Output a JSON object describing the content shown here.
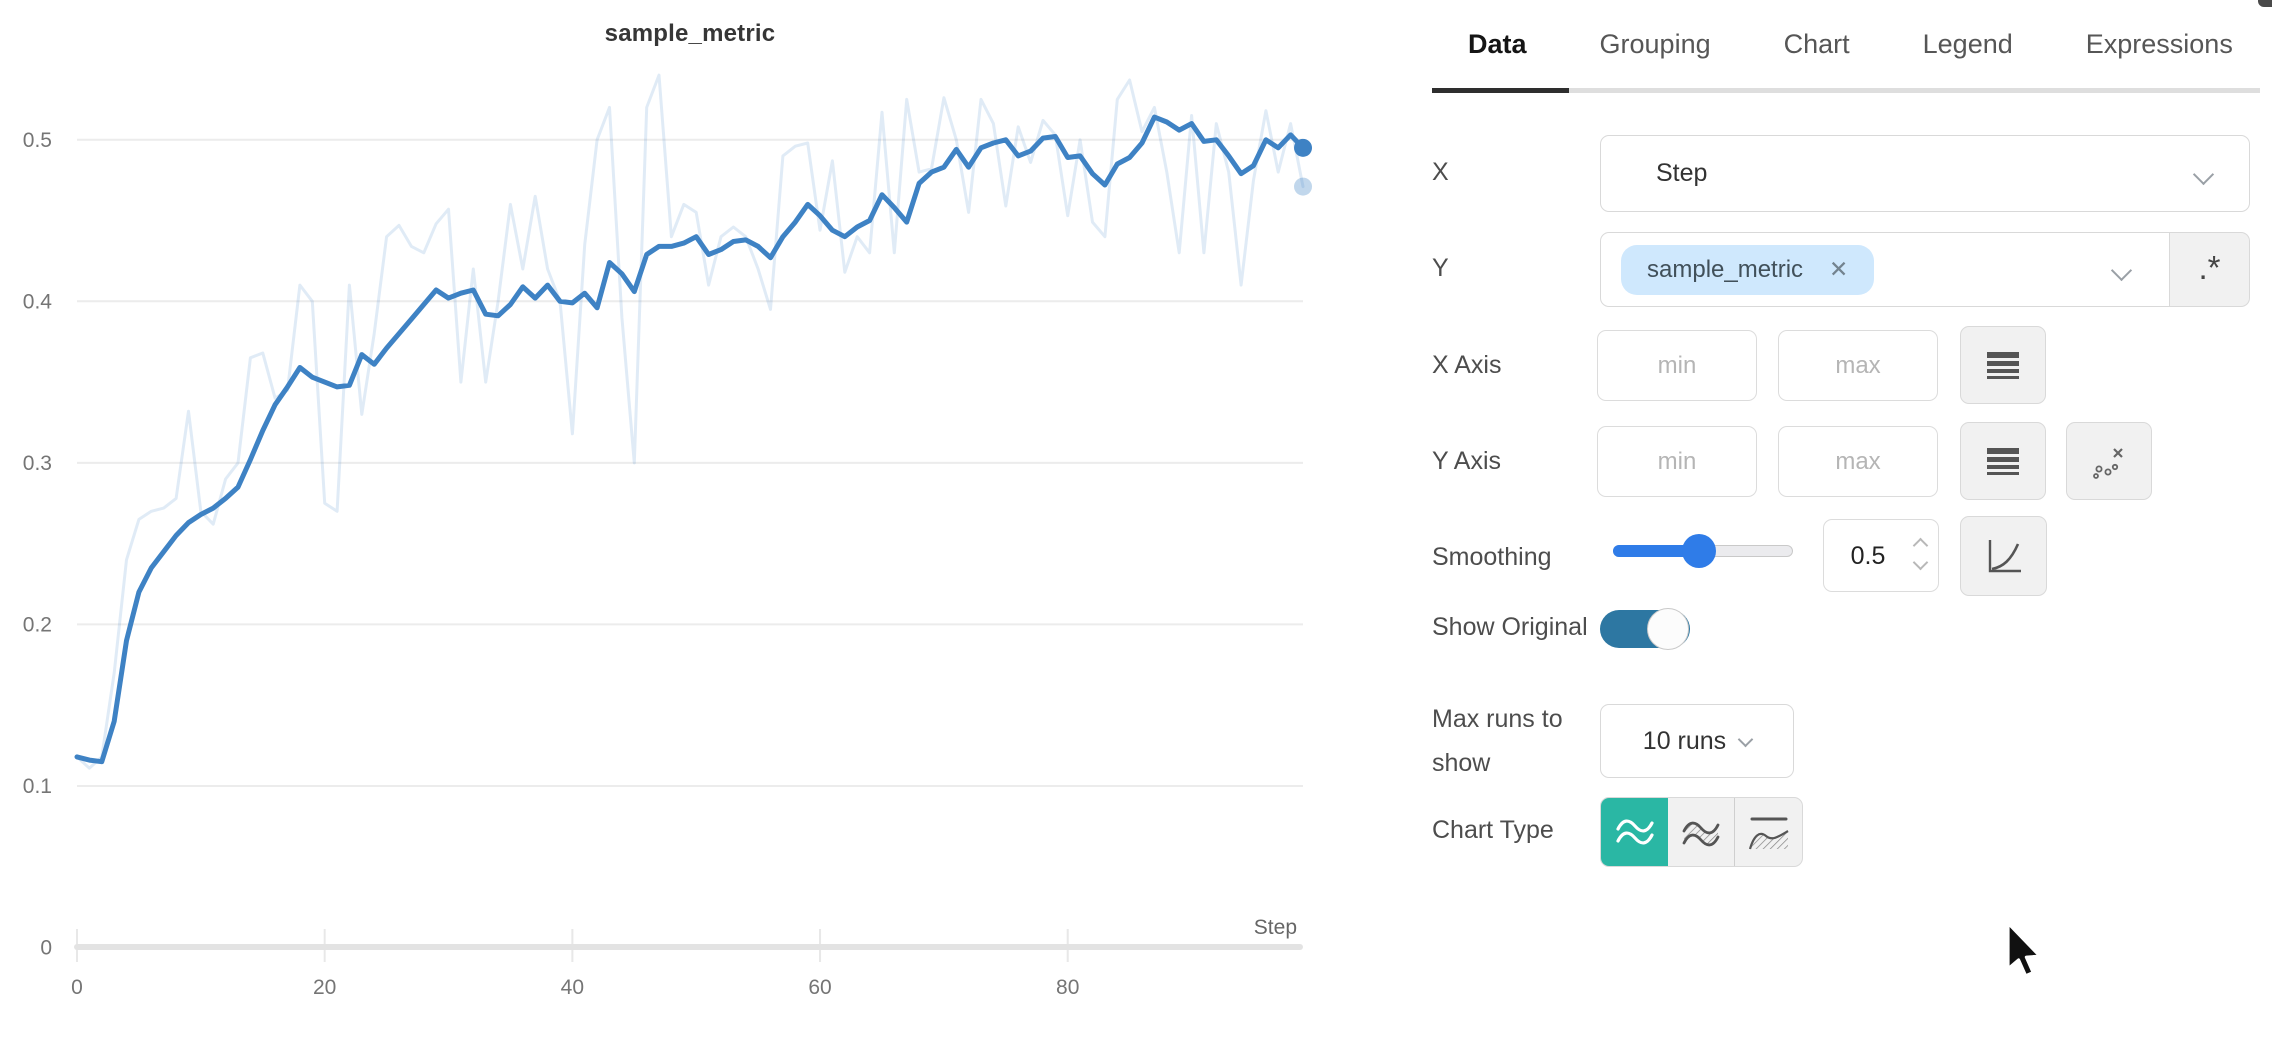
{
  "chart_data": {
    "type": "line",
    "title": "sample_metric",
    "xlabel": "Step",
    "x_ticks": [
      0,
      20,
      40,
      60,
      80
    ],
    "y_ticks": [
      0,
      0.1,
      0.2,
      0.3,
      0.4,
      0.5
    ],
    "xlim": [
      0,
      99
    ],
    "ylim": [
      0,
      0.55
    ],
    "grid": true,
    "legend": "none",
    "x": {
      "start": 0,
      "end": 99,
      "step": 1
    },
    "series": [
      {
        "name": "sample_metric (smoothed)",
        "color": "#3e82c4",
        "opacity": 1,
        "width": 5,
        "values": [
          0.118,
          0.116,
          0.115,
          0.14,
          0.19,
          0.22,
          0.235,
          0.245,
          0.255,
          0.263,
          0.268,
          0.272,
          0.278,
          0.285,
          0.302,
          0.32,
          0.336,
          0.347,
          0.359,
          0.353,
          0.35,
          0.347,
          0.348,
          0.367,
          0.361,
          0.371,
          0.38,
          0.389,
          0.398,
          0.407,
          0.402,
          0.405,
          0.407,
          0.392,
          0.391,
          0.398,
          0.409,
          0.402,
          0.41,
          0.4,
          0.399,
          0.405,
          0.396,
          0.424,
          0.417,
          0.406,
          0.429,
          0.434,
          0.434,
          0.436,
          0.44,
          0.429,
          0.432,
          0.437,
          0.438,
          0.434,
          0.427,
          0.44,
          0.449,
          0.46,
          0.453,
          0.444,
          0.44,
          0.446,
          0.45,
          0.466,
          0.458,
          0.449,
          0.473,
          0.48,
          0.483,
          0.494,
          0.483,
          0.495,
          0.498,
          0.5,
          0.49,
          0.493,
          0.501,
          0.502,
          0.489,
          0.49,
          0.479,
          0.472,
          0.485,
          0.489,
          0.498,
          0.514,
          0.511,
          0.506,
          0.51,
          0.499,
          0.5,
          0.49,
          0.479,
          0.484,
          0.5,
          0.495,
          0.503,
          0.495
        ]
      },
      {
        "name": "sample_metric (original)",
        "color": "#3e82c4",
        "opacity": 0.16,
        "width": 3,
        "values": [
          0.118,
          0.111,
          0.118,
          0.17,
          0.24,
          0.265,
          0.27,
          0.272,
          0.278,
          0.332,
          0.27,
          0.262,
          0.29,
          0.3,
          0.365,
          0.368,
          0.34,
          0.345,
          0.41,
          0.4,
          0.275,
          0.27,
          0.41,
          0.33,
          0.38,
          0.44,
          0.447,
          0.434,
          0.43,
          0.448,
          0.457,
          0.35,
          0.42,
          0.35,
          0.4,
          0.46,
          0.42,
          0.465,
          0.42,
          0.4,
          0.318,
          0.435,
          0.5,
          0.52,
          0.39,
          0.3,
          0.52,
          0.54,
          0.44,
          0.46,
          0.455,
          0.41,
          0.44,
          0.446,
          0.44,
          0.42,
          0.395,
          0.49,
          0.496,
          0.498,
          0.444,
          0.487,
          0.418,
          0.44,
          0.43,
          0.517,
          0.43,
          0.525,
          0.48,
          0.482,
          0.526,
          0.5,
          0.455,
          0.525,
          0.51,
          0.459,
          0.508,
          0.486,
          0.512,
          0.503,
          0.453,
          0.5,
          0.449,
          0.44,
          0.525,
          0.537,
          0.505,
          0.52,
          0.48,
          0.43,
          0.515,
          0.43,
          0.51,
          0.48,
          0.41,
          0.475,
          0.518,
          0.48,
          0.51,
          0.471
        ]
      }
    ]
  },
  "panel": {
    "tabs": [
      {
        "label": "Data",
        "active": true
      },
      {
        "label": "Grouping",
        "active": false
      },
      {
        "label": "Chart",
        "active": false
      },
      {
        "label": "Legend",
        "active": false
      },
      {
        "label": "Expressions",
        "active": false
      }
    ],
    "rows": {
      "x": {
        "label": "X",
        "value": "Step"
      },
      "y": {
        "label": "Y",
        "tag": "sample_metric",
        "remove_icon": "✕",
        "regex_button": ".*"
      },
      "x_axis": {
        "label": "X Axis",
        "min_placeholder": "min",
        "max_placeholder": "max"
      },
      "y_axis": {
        "label": "Y Axis",
        "min_placeholder": "min",
        "max_placeholder": "max"
      },
      "smoothing": {
        "label": "Smoothing",
        "value": "0.5"
      },
      "show_original": {
        "label": "Show Original",
        "on": true
      },
      "max_runs": {
        "label": "Max runs to show",
        "value": "10 runs"
      },
      "chart_type": {
        "label": "Chart Type",
        "selected_index": 0
      }
    },
    "colors": {
      "accent_teal": "#2ab7a4",
      "slider_blue": "#2f7ce8",
      "toggle_blue": "#2d77a2",
      "tag_bg": "#cfe8fd",
      "line_blue": "#3e82c4",
      "active_tab": "#2e2e2e"
    }
  }
}
